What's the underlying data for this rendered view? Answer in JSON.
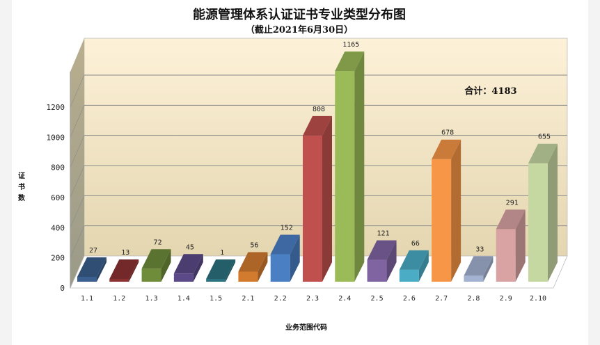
{
  "chart_data": {
    "type": "bar",
    "style": "3d-column",
    "title": "能源管理体系认证证书专业类型分布图",
    "subtitle": "（截止2021年6月30日）",
    "xlabel": "业务范围代码",
    "ylabel": "证书数",
    "annotation": "合计：4183",
    "categories": [
      "1.1",
      "1.2",
      "1.3",
      "1.4",
      "1.5",
      "2.1",
      "2.2",
      "2.3",
      "2.4",
      "2.5",
      "2.6",
      "2.7",
      "2.8",
      "2.9",
      "2.10"
    ],
    "values": [
      27,
      13,
      72,
      45,
      1,
      56,
      152,
      808,
      1165,
      121,
      66,
      678,
      33,
      291,
      655
    ],
    "colors": [
      "#3b5f8e",
      "#8c3232",
      "#6e8c3a",
      "#5c4a88",
      "#2b7380",
      "#d27b2e",
      "#4a7fc4",
      "#c0504d",
      "#9bbb59",
      "#8064a2",
      "#4bacc6",
      "#f79646",
      "#a3b2d0",
      "#d9a3a3",
      "#c6d8a2"
    ],
    "yticks": [
      0,
      200,
      400,
      600,
      800,
      1000,
      1200
    ],
    "ylim": [
      0,
      1200
    ],
    "grid": true,
    "wall_colors": [
      "#fdf1d8",
      "#e4d6b0"
    ]
  }
}
